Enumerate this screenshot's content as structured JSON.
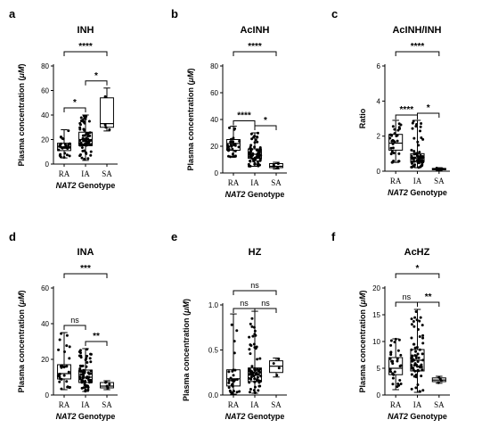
{
  "chart_data": [
    {
      "panel": "a",
      "title": "INH",
      "type": "box",
      "ylabel_pre": "Plasma concentration (",
      "ylabel_unit": "μM",
      "ylabel_post": ")",
      "xlabel_it": "NAT2",
      "xlabel_rest": " Genotype",
      "ylim": [
        0,
        80
      ],
      "yticks": [
        0,
        20,
        40,
        60,
        80
      ],
      "categories": [
        "RA",
        "IA",
        "SA"
      ],
      "boxes": [
        {
          "cat": "RA",
          "min": 5,
          "q1": 11,
          "median": 14,
          "q3": 17,
          "max": 28,
          "n": 30
        },
        {
          "cat": "IA",
          "min": 3,
          "q1": 15,
          "median": 20,
          "q3": 26,
          "max": 40,
          "n": 70
        },
        {
          "cat": "SA",
          "min": 27,
          "q1": 30,
          "median": 33,
          "q3": 54,
          "max": 62,
          "n": 4,
          "points": [
            28,
            30,
            32,
            55
          ]
        }
      ],
      "comparisons": [
        {
          "from": 0,
          "to": 2,
          "label": "****",
          "level": 2
        },
        {
          "from": 0,
          "to": 1,
          "label": "*",
          "level": 1
        },
        {
          "from": 1,
          "to": 2,
          "label": "*",
          "level": 1
        }
      ]
    },
    {
      "panel": "b",
      "title": "AcINH",
      "type": "box",
      "ylabel_pre": "Plasma concentration (",
      "ylabel_unit": "μM",
      "ylabel_post": ")",
      "xlabel_it": "NAT2",
      "xlabel_rest": " Genotype",
      "ylim": [
        0,
        80
      ],
      "yticks": [
        0,
        20,
        40,
        60,
        80
      ],
      "categories": [
        "RA",
        "IA",
        "SA"
      ],
      "boxes": [
        {
          "cat": "RA",
          "min": 12,
          "q1": 17,
          "median": 22,
          "q3": 25,
          "max": 35,
          "n": 30
        },
        {
          "cat": "IA",
          "min": 5,
          "q1": 11,
          "median": 14,
          "q3": 18,
          "max": 30,
          "n": 70
        },
        {
          "cat": "SA",
          "min": 3,
          "q1": 4,
          "median": 5,
          "q3": 7,
          "max": 8,
          "n": 4,
          "points": [
            4,
            5,
            6,
            7
          ]
        }
      ],
      "comparisons": [
        {
          "from": 0,
          "to": 2,
          "label": "****",
          "level": 2
        },
        {
          "from": 0,
          "to": 1,
          "label": "****",
          "level": 0
        },
        {
          "from": 1,
          "to": 2,
          "label": "*",
          "level": 1
        }
      ]
    },
    {
      "panel": "c",
      "title": "AcINH/INH",
      "type": "box",
      "ylabel_pre": "Ratio",
      "ylabel_unit": "",
      "ylabel_post": "",
      "xlabel_it": "NAT2",
      "xlabel_rest": " Genotype",
      "ylim": [
        0,
        6
      ],
      "yticks": [
        0,
        2,
        4,
        6
      ],
      "categories": [
        "RA",
        "IA",
        "SA"
      ],
      "boxes": [
        {
          "cat": "RA",
          "min": 0.5,
          "q1": 1.2,
          "median": 1.6,
          "q3": 2.1,
          "max": 2.9,
          "n": 30
        },
        {
          "cat": "IA",
          "min": 0.2,
          "q1": 0.55,
          "median": 0.75,
          "q3": 1.0,
          "max": 2.9,
          "n": 70
        },
        {
          "cat": "SA",
          "min": 0.05,
          "q1": 0.08,
          "median": 0.12,
          "q3": 0.16,
          "max": 0.2,
          "n": 4,
          "points": [
            0.08,
            0.1,
            0.14,
            0.18
          ]
        }
      ],
      "comparisons": [
        {
          "from": 0,
          "to": 2,
          "label": "****",
          "level": 2
        },
        {
          "from": 0,
          "to": 1,
          "label": "****",
          "level": 0
        },
        {
          "from": 1,
          "to": 2,
          "label": "*",
          "level": 1
        }
      ]
    },
    {
      "panel": "d",
      "title": "INA",
      "type": "box",
      "ylabel_pre": "Plasma concentration (",
      "ylabel_unit": "μM",
      "ylabel_post": ")",
      "xlabel_it": "NAT2",
      "xlabel_rest": " Genotype",
      "ylim": [
        0,
        60
      ],
      "yticks": [
        0,
        20,
        40,
        60
      ],
      "categories": [
        "RA",
        "IA",
        "SA"
      ],
      "boxes": [
        {
          "cat": "RA",
          "min": 3,
          "q1": 9,
          "median": 12,
          "q3": 17,
          "max": 35,
          "n": 30
        },
        {
          "cat": "IA",
          "min": 2,
          "q1": 7,
          "median": 10,
          "q3": 14,
          "max": 26,
          "n": 70
        },
        {
          "cat": "SA",
          "min": 3,
          "q1": 4,
          "median": 5,
          "q3": 7,
          "max": 8,
          "n": 4,
          "points": [
            4,
            5,
            6,
            7
          ]
        }
      ],
      "comparisons": [
        {
          "from": 0,
          "to": 2,
          "label": "***",
          "level": 2
        },
        {
          "from": 0,
          "to": 1,
          "label": "ns",
          "level": 1
        },
        {
          "from": 1,
          "to": 2,
          "label": "**",
          "level": 1
        }
      ]
    },
    {
      "panel": "e",
      "title": "HZ",
      "type": "box",
      "ylabel_pre": "Plasma concentration (",
      "ylabel_unit": "μM",
      "ylabel_post": ")",
      "xlabel_it": "NAT2",
      "xlabel_rest": " Genotype",
      "ylim": [
        0,
        1.0
      ],
      "yticks": [
        0.0,
        0.5,
        1.0
      ],
      "categories": [
        "RA",
        "IA",
        "SA"
      ],
      "boxes": [
        {
          "cat": "RA",
          "min": 0.01,
          "q1": 0.1,
          "median": 0.18,
          "q3": 0.28,
          "max": 0.9,
          "n": 30
        },
        {
          "cat": "IA",
          "min": 0.02,
          "q1": 0.15,
          "median": 0.22,
          "q3": 0.3,
          "max": 0.93,
          "n": 70
        },
        {
          "cat": "SA",
          "min": 0.2,
          "q1": 0.25,
          "median": 0.32,
          "q3": 0.38,
          "max": 0.41,
          "n": 4,
          "points": [
            0.22,
            0.3,
            0.35,
            0.4
          ]
        }
      ],
      "comparisons": [
        {
          "from": 0,
          "to": 2,
          "label": "ns",
          "level": 2
        },
        {
          "from": 0,
          "to": 1,
          "label": "ns",
          "level": 1
        },
        {
          "from": 1,
          "to": 2,
          "label": "ns",
          "level": 1
        }
      ]
    },
    {
      "panel": "f",
      "title": "AcHZ",
      "type": "box",
      "ylabel_pre": "Plasma concentration (",
      "ylabel_unit": "μM",
      "ylabel_post": ")",
      "xlabel_it": "NAT2",
      "xlabel_rest": " Genotype",
      "ylim": [
        0,
        20
      ],
      "yticks": [
        0,
        5,
        10,
        15,
        20
      ],
      "categories": [
        "RA",
        "IA",
        "SA"
      ],
      "boxes": [
        {
          "cat": "RA",
          "min": 1,
          "q1": 3.8,
          "median": 5.0,
          "q3": 7.0,
          "max": 10.5,
          "n": 30
        },
        {
          "cat": "IA",
          "min": 0.5,
          "q1": 4.5,
          "median": 6.5,
          "q3": 8.5,
          "max": 16,
          "n": 70
        },
        {
          "cat": "SA",
          "min": 2.2,
          "q1": 2.5,
          "median": 2.8,
          "q3": 3.2,
          "max": 3.5,
          "n": 4,
          "points": [
            2.3,
            2.7,
            3.0,
            3.3
          ]
        }
      ],
      "comparisons": [
        {
          "from": 0,
          "to": 2,
          "label": "*",
          "level": 2
        },
        {
          "from": 0,
          "to": 1,
          "label": "ns",
          "level": 1
        },
        {
          "from": 1,
          "to": 2,
          "label": "**",
          "level": 1
        }
      ]
    }
  ]
}
